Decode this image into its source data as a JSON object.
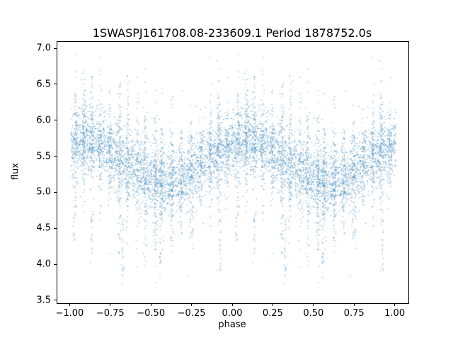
{
  "chart_data": {
    "type": "scatter",
    "title": "1SWASPJ161708.08-233609.1 Period 1878752.0s",
    "xlabel": "phase",
    "ylabel": "flux",
    "xlim": [
      -1.08,
      1.08
    ],
    "ylim": [
      3.47,
      7.1
    ],
    "x_ticks": [
      -1.0,
      -0.75,
      -0.5,
      -0.25,
      0.0,
      0.25,
      0.5,
      0.75,
      1.0
    ],
    "x_tick_labels": [
      "−1.00",
      "−0.75",
      "−0.50",
      "−0.25",
      "0.00",
      "0.25",
      "0.50",
      "0.75",
      "1.00"
    ],
    "y_ticks": [
      3.5,
      4.0,
      4.5,
      5.0,
      5.5,
      6.0,
      6.5,
      7.0
    ],
    "y_tick_labels": [
      "3.5",
      "4.0",
      "4.5",
      "5.0",
      "5.5",
      "6.0",
      "6.5",
      "7.0"
    ],
    "grid": false,
    "legend": null,
    "marker_color": "#1f77b4",
    "marker_alpha": 0.55,
    "marker_size_px": 1.3,
    "description": "Folded photometric light curve; dense noisy band of ~8000 tiny points between flux 4.6 and 6.5 with vertical night-streaks and sparse low outliers down to flux ~3.65. Pattern for phase 0..1 is duplicated at phase -1..0.",
    "fold": "each generated point at phase u in [0,1) is plotted at u and u-1",
    "generator": {
      "seed": 42,
      "flux_clip": [
        3.6,
        6.97
      ],
      "base": {
        "n": 2600,
        "mean_level": 5.45,
        "mean_amplitude": 0.28,
        "mean_phase_offset": 0.08,
        "noise_sigma": 0.22
      },
      "clusters": [
        {
          "phase": 0.03,
          "n": 80,
          "phase_sigma": 0.006,
          "flux_sigma": 0.45
        },
        {
          "phase": 0.08,
          "n": 90,
          "phase_sigma": 0.006,
          "flux_sigma": 0.5
        },
        {
          "phase": 0.13,
          "n": 80,
          "phase_sigma": 0.006,
          "flux_sigma": 0.45
        },
        {
          "phase": 0.18,
          "n": 70,
          "phase_sigma": 0.006,
          "flux_sigma": 0.4
        },
        {
          "phase": 0.24,
          "n": 70,
          "phase_sigma": 0.006,
          "flux_sigma": 0.45
        },
        {
          "phase": 0.3,
          "n": 110,
          "phase_sigma": 0.006,
          "flux_sigma": 0.55
        },
        {
          "phase": 0.35,
          "n": 90,
          "phase_sigma": 0.006,
          "flux_sigma": 0.5
        },
        {
          "phase": 0.41,
          "n": 80,
          "phase_sigma": 0.006,
          "flux_sigma": 0.5
        },
        {
          "phase": 0.46,
          "n": 90,
          "phase_sigma": 0.006,
          "flux_sigma": 0.55
        },
        {
          "phase": 0.52,
          "n": 100,
          "phase_sigma": 0.006,
          "flux_sigma": 0.55
        },
        {
          "phase": 0.56,
          "n": 90,
          "phase_sigma": 0.006,
          "flux_sigma": 0.5
        },
        {
          "phase": 0.62,
          "n": 80,
          "phase_sigma": 0.006,
          "flux_sigma": 0.45
        },
        {
          "phase": 0.68,
          "n": 70,
          "phase_sigma": 0.006,
          "flux_sigma": 0.45
        },
        {
          "phase": 0.74,
          "n": 80,
          "phase_sigma": 0.006,
          "flux_sigma": 0.45
        },
        {
          "phase": 0.8,
          "n": 70,
          "phase_sigma": 0.006,
          "flux_sigma": 0.4
        },
        {
          "phase": 0.86,
          "n": 80,
          "phase_sigma": 0.006,
          "flux_sigma": 0.45
        },
        {
          "phase": 0.91,
          "n": 90,
          "phase_sigma": 0.006,
          "flux_sigma": 0.5
        },
        {
          "phase": 0.96,
          "n": 70,
          "phase_sigma": 0.006,
          "flux_sigma": 0.4
        }
      ],
      "low_outlier_streaks": [
        {
          "phase": 0.32,
          "n": 25,
          "flux_min": 3.62,
          "flux_max": 4.7
        },
        {
          "phase": 0.13,
          "n": 18,
          "flux_min": 4.0,
          "flux_max": 4.8
        },
        {
          "phase": 0.55,
          "n": 20,
          "flux_min": 4.0,
          "flux_max": 4.8
        },
        {
          "phase": 0.75,
          "n": 15,
          "flux_min": 4.2,
          "flux_max": 4.9
        },
        {
          "phase": 0.92,
          "n": 18,
          "flux_min": 3.9,
          "flux_max": 4.8
        },
        {
          "phase": 0.02,
          "n": 12,
          "flux_min": 4.3,
          "flux_max": 4.9
        }
      ]
    }
  }
}
